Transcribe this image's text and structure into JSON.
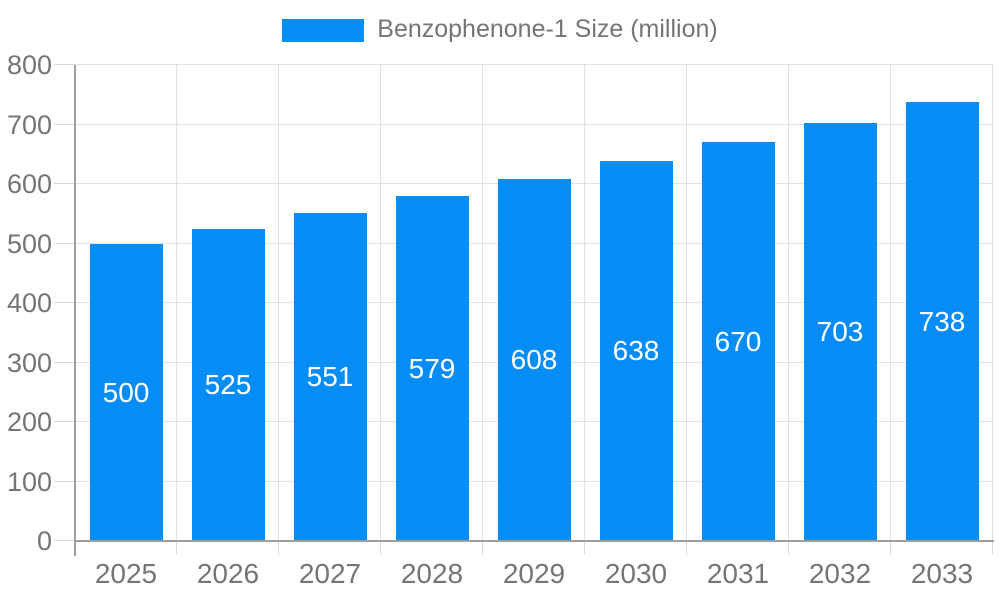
{
  "legend": {
    "items": [
      {
        "label": "Benzophenone-1 Size (million)",
        "color": "#058df7"
      }
    ]
  },
  "chart_data": {
    "type": "bar",
    "title": "",
    "categories": [
      "2025",
      "2026",
      "2027",
      "2028",
      "2029",
      "2030",
      "2031",
      "2032",
      "2033"
    ],
    "series": [
      {
        "name": "Benzophenone-1 Size (million)",
        "values": [
          500,
          525,
          551,
          579,
          608,
          638,
          670,
          703,
          738
        ],
        "color": "#058df7"
      }
    ],
    "xlabel": "",
    "ylabel": "",
    "ylim": [
      0,
      800
    ],
    "yticks": [
      0,
      100,
      200,
      300,
      400,
      500,
      600,
      700,
      800
    ],
    "grid": true,
    "legend_position": "top",
    "value_labels": "centered-inside-bars",
    "value_label_color": "#ffffff"
  },
  "style": {
    "background": "#ffffff",
    "bar_color": "#058df7",
    "axis_color": "#9e9e9e",
    "grid_color": "#e2e2e2",
    "tick_color": "#d9d9d9",
    "text_color": "#757575"
  }
}
